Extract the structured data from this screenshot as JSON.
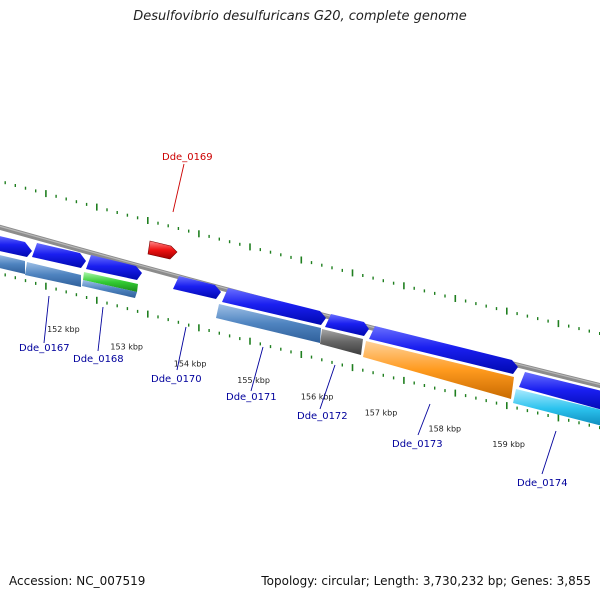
{
  "title": "Desulfovibrio desulfuricans G20, complete genome",
  "footer": {
    "accession": "Accession: NC_007519",
    "summary": "Topology: circular; Length: 3,730,232 bp; Genes: 3,855"
  },
  "scale": {
    "unit": "kbp",
    "ticks": [
      152,
      153,
      154,
      155,
      156,
      157,
      158,
      159
    ]
  },
  "colors": {
    "backbone": "#8c8c8c",
    "tick_marks": "#1f7f1f",
    "highlight_label": "#cc0000",
    "label": "#00009c",
    "cds_forward": "#0a10e8",
    "cds_reverse": "#0a10e8",
    "rna_steel": "#4f84c0",
    "rna_green": "#3ccf3c",
    "rna_gray": "#6a6a6a",
    "rna_orange": "#ff9a1e",
    "rna_cyan": "#2cc3ee",
    "highlight_gene": "#ee1111"
  },
  "labels": [
    {
      "name": "Dde_0167",
      "highlight": false
    },
    {
      "name": "Dde_0168",
      "highlight": false
    },
    {
      "name": "Dde_0169",
      "highlight": true
    },
    {
      "name": "Dde_0170",
      "highlight": false
    },
    {
      "name": "Dde_0171",
      "highlight": false
    },
    {
      "name": "Dde_0172",
      "highlight": false
    },
    {
      "name": "Dde_0173",
      "highlight": false
    },
    {
      "name": "Dde_0174",
      "highlight": false
    }
  ]
}
